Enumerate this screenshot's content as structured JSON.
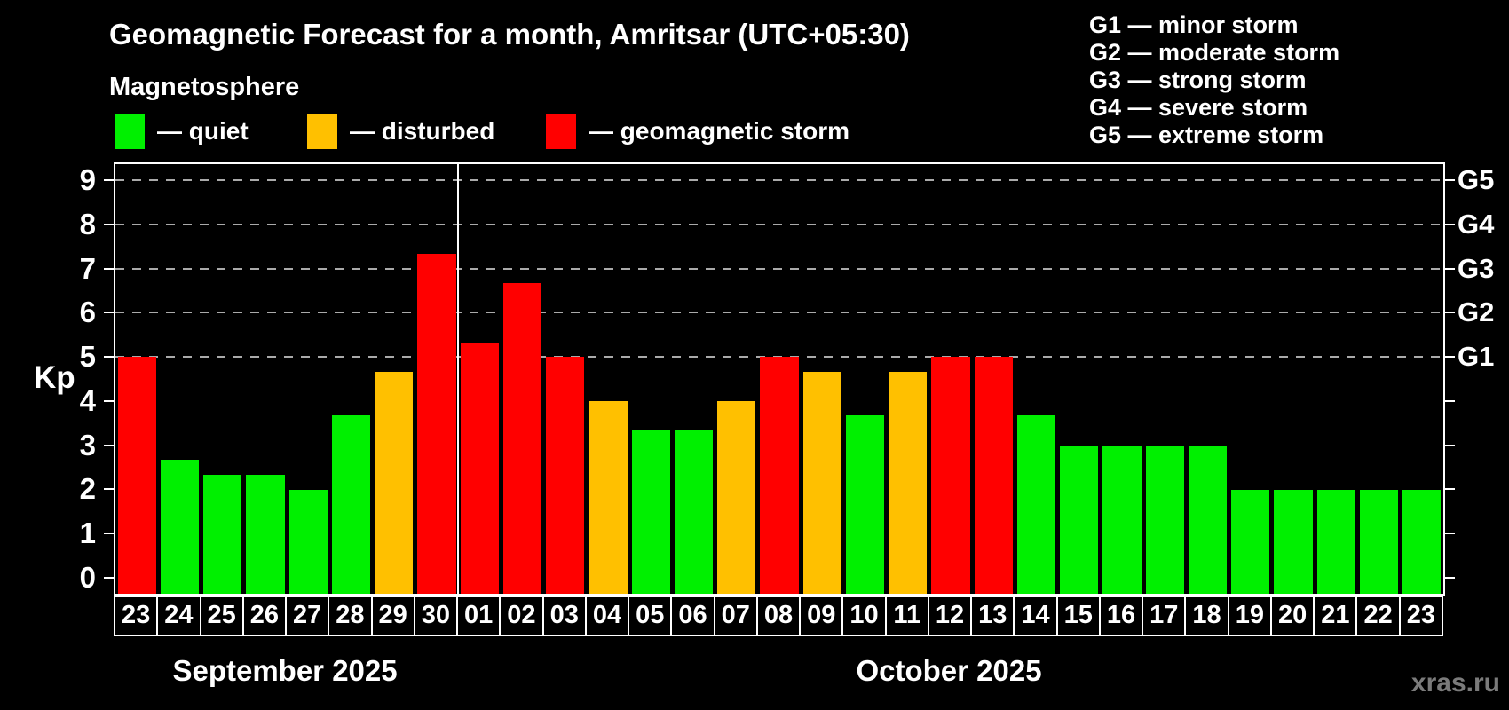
{
  "header": {
    "title": "Geomagnetic Forecast for a month, Amritsar (UTC+05:30)",
    "subtitle": "Magnetosphere"
  },
  "legend": {
    "items": [
      {
        "key": "quiet",
        "label": "— quiet",
        "color": "#00f000"
      },
      {
        "key": "disturbed",
        "label": "— disturbed",
        "color": "#ffc000"
      },
      {
        "key": "storm",
        "label": "— geomagnetic storm",
        "color": "#ff0000"
      }
    ]
  },
  "g_legend": {
    "items": [
      "G1 — minor storm",
      "G2 — moderate storm",
      "G3 — strong storm",
      "G4 — severe storm",
      "G5 — extreme storm"
    ]
  },
  "watermark": "xras.ru",
  "chart_data": {
    "type": "bar",
    "title": "Geomagnetic Forecast for a month, Amritsar (UTC+05:30)",
    "subtitle": "Magnetosphere",
    "ylabel": "Kp",
    "ylim": [
      -0.36,
      9.36
    ],
    "y_ticks": [
      0,
      1,
      2,
      3,
      4,
      5,
      6,
      7,
      8,
      9
    ],
    "gridlines_at": [
      5,
      6,
      7,
      8,
      9
    ],
    "grid": "dashed horizontal at storm levels only",
    "right_axis": [
      {
        "label": "G1",
        "kp": 5
      },
      {
        "label": "G2",
        "kp": 6
      },
      {
        "label": "G3",
        "kp": 7
      },
      {
        "label": "G4",
        "kp": 8
      },
      {
        "label": "G5",
        "kp": 9
      }
    ],
    "months": [
      {
        "label": "September 2025",
        "days": 8
      },
      {
        "label": "October 2025",
        "days": 23
      }
    ],
    "categories": [
      "23",
      "24",
      "25",
      "26",
      "27",
      "28",
      "29",
      "30",
      "01",
      "02",
      "03",
      "04",
      "05",
      "06",
      "07",
      "08",
      "09",
      "10",
      "11",
      "12",
      "13",
      "14",
      "15",
      "16",
      "17",
      "18",
      "19",
      "20",
      "21",
      "22",
      "23"
    ],
    "values": [
      5,
      2.67,
      2.33,
      2.33,
      2,
      3.67,
      4.67,
      7.33,
      5.33,
      6.67,
      5,
      4,
      3.33,
      3.33,
      4,
      5,
      4.67,
      3.67,
      4.67,
      5,
      5,
      3.67,
      3,
      3,
      3,
      3,
      2,
      2,
      2,
      2,
      2
    ],
    "levels": [
      "storm",
      "quiet",
      "quiet",
      "quiet",
      "quiet",
      "quiet",
      "disturbed",
      "storm",
      "storm",
      "storm",
      "storm",
      "disturbed",
      "quiet",
      "quiet",
      "disturbed",
      "storm",
      "disturbed",
      "quiet",
      "disturbed",
      "storm",
      "storm",
      "quiet",
      "quiet",
      "quiet",
      "quiet",
      "quiet",
      "quiet",
      "quiet",
      "quiet",
      "quiet",
      "quiet"
    ],
    "colors": {
      "quiet": "#00f000",
      "disturbed": "#ffc000",
      "storm": "#ff0000"
    },
    "legend_position": "top-left"
  }
}
